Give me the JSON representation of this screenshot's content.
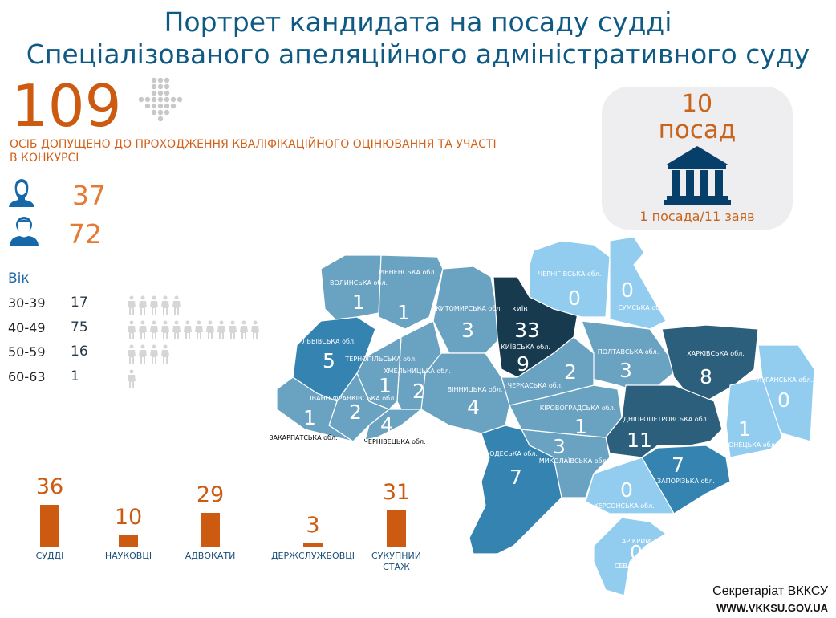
{
  "header": {
    "title_line1": "Портрет кандидата на посаду судді",
    "title_line2": "Спеціалізованого апеляційного адміністративного суду"
  },
  "total": {
    "value": "109",
    "caption": "ОСІБ ДОПУЩЕНО ДО ПРОХОДЖЕННЯ КВАЛІФІКАЦІЙНОГО ОЦІНЮВАННЯ ТА УЧАСТІ В КОНКУРСІ"
  },
  "gender": {
    "female": "37",
    "male": "72"
  },
  "age": {
    "heading": "Вік",
    "rows": [
      {
        "range": "30-39",
        "count": "17",
        "figures": 5
      },
      {
        "range": "40-49",
        "count": "75",
        "figures": 12
      },
      {
        "range": "50-59",
        "count": "16",
        "figures": 4
      },
      {
        "range": "60-63",
        "count": "1",
        "figures": 1
      }
    ]
  },
  "positions": {
    "count": "10",
    "word": "посад",
    "ratio": "1 посада/11 заяв"
  },
  "experience": [
    {
      "value": "36",
      "label": "СУДДІ"
    },
    {
      "value": "10",
      "label": "НАУКОВЦІ"
    },
    {
      "value": "29",
      "label": "АДВОКАТИ"
    },
    {
      "value": "3",
      "label": "ДЕРЖСЛУЖБОВЦІ"
    },
    {
      "value": "31",
      "label": "СУКУПНИЙ СТАЖ"
    }
  ],
  "map": {
    "colors": {
      "level0": "#92cdf0",
      "level1": "#6aa2c2",
      "level2": "#3483b0",
      "level3": "#2c5f7c",
      "level4": "#173a4e"
    },
    "regions": [
      {
        "name": "ВОЛИНСЬКА обл.",
        "value": "1"
      },
      {
        "name": "РІВНЕНСЬКА обл.",
        "value": "1"
      },
      {
        "name": "ЖИТОМИРСЬКА обл.",
        "value": "3"
      },
      {
        "name": "КИЇВСЬКА обл.",
        "value": "9",
        "city": "КИЇВ",
        "city_value": "33"
      },
      {
        "name": "ЧЕРНІГІВСЬКА обл.",
        "value": "0"
      },
      {
        "name": "СУМСЬКА обл.",
        "value": "0"
      },
      {
        "name": "ПОЛТАВСЬКА обл.",
        "value": "3"
      },
      {
        "name": "ХАРКІВСЬКА обл.",
        "value": "8"
      },
      {
        "name": "ЛУГАНСЬКА обл.",
        "value": "0"
      },
      {
        "name": "ДОНЕЦЬКА обл.",
        "value": "1"
      },
      {
        "name": "ДНІПРОПЕТРОВСЬКА обл.",
        "value": "11"
      },
      {
        "name": "ЗАПОРІЗЬКА обл.",
        "value": "7"
      },
      {
        "name": "ХЕРСОНСЬКА обл.",
        "value": "0"
      },
      {
        "name": "АР КРИМ",
        "value": "0",
        "city": "СЕВАСТОПОЛЬ",
        "city_value": "0"
      },
      {
        "name": "МИКОЛАЇВСЬКА обл.",
        "value": "3"
      },
      {
        "name": "КІРОВОГРАДСЬКА обл.",
        "value": "1"
      },
      {
        "name": "ЧЕРКАСЬКА обл.",
        "value": "2"
      },
      {
        "name": "ВІННИЦЬКА обл.",
        "value": "4"
      },
      {
        "name": "ХМЕЛЬНИЦЬКА обл.",
        "value": "2"
      },
      {
        "name": "ТЕРНОПІЛЬСЬКА обл.",
        "value": "1"
      },
      {
        "name": "ЛЬВІВСЬКА обл.",
        "value": "5"
      },
      {
        "name": "ІВАНО-ФРАНКІВСЬКА обл.",
        "value": "2"
      },
      {
        "name": "ЧЕРНІВЕЦЬКА обл.",
        "value": "4"
      },
      {
        "name": "ЗАКАРПАТСЬКА обл.",
        "value": "1"
      },
      {
        "name": "ОДЕСЬКА обл.",
        "value": "7"
      }
    ]
  },
  "footer": {
    "org": "Секретаріат ВККСУ",
    "site": "WWW.VKKSU.GOV.UA"
  },
  "icons": {
    "arrow": "dotted-arrow-down-icon",
    "female": "female-user-icon",
    "male": "male-user-icon",
    "person": "person-icon",
    "court": "courthouse-icon"
  }
}
